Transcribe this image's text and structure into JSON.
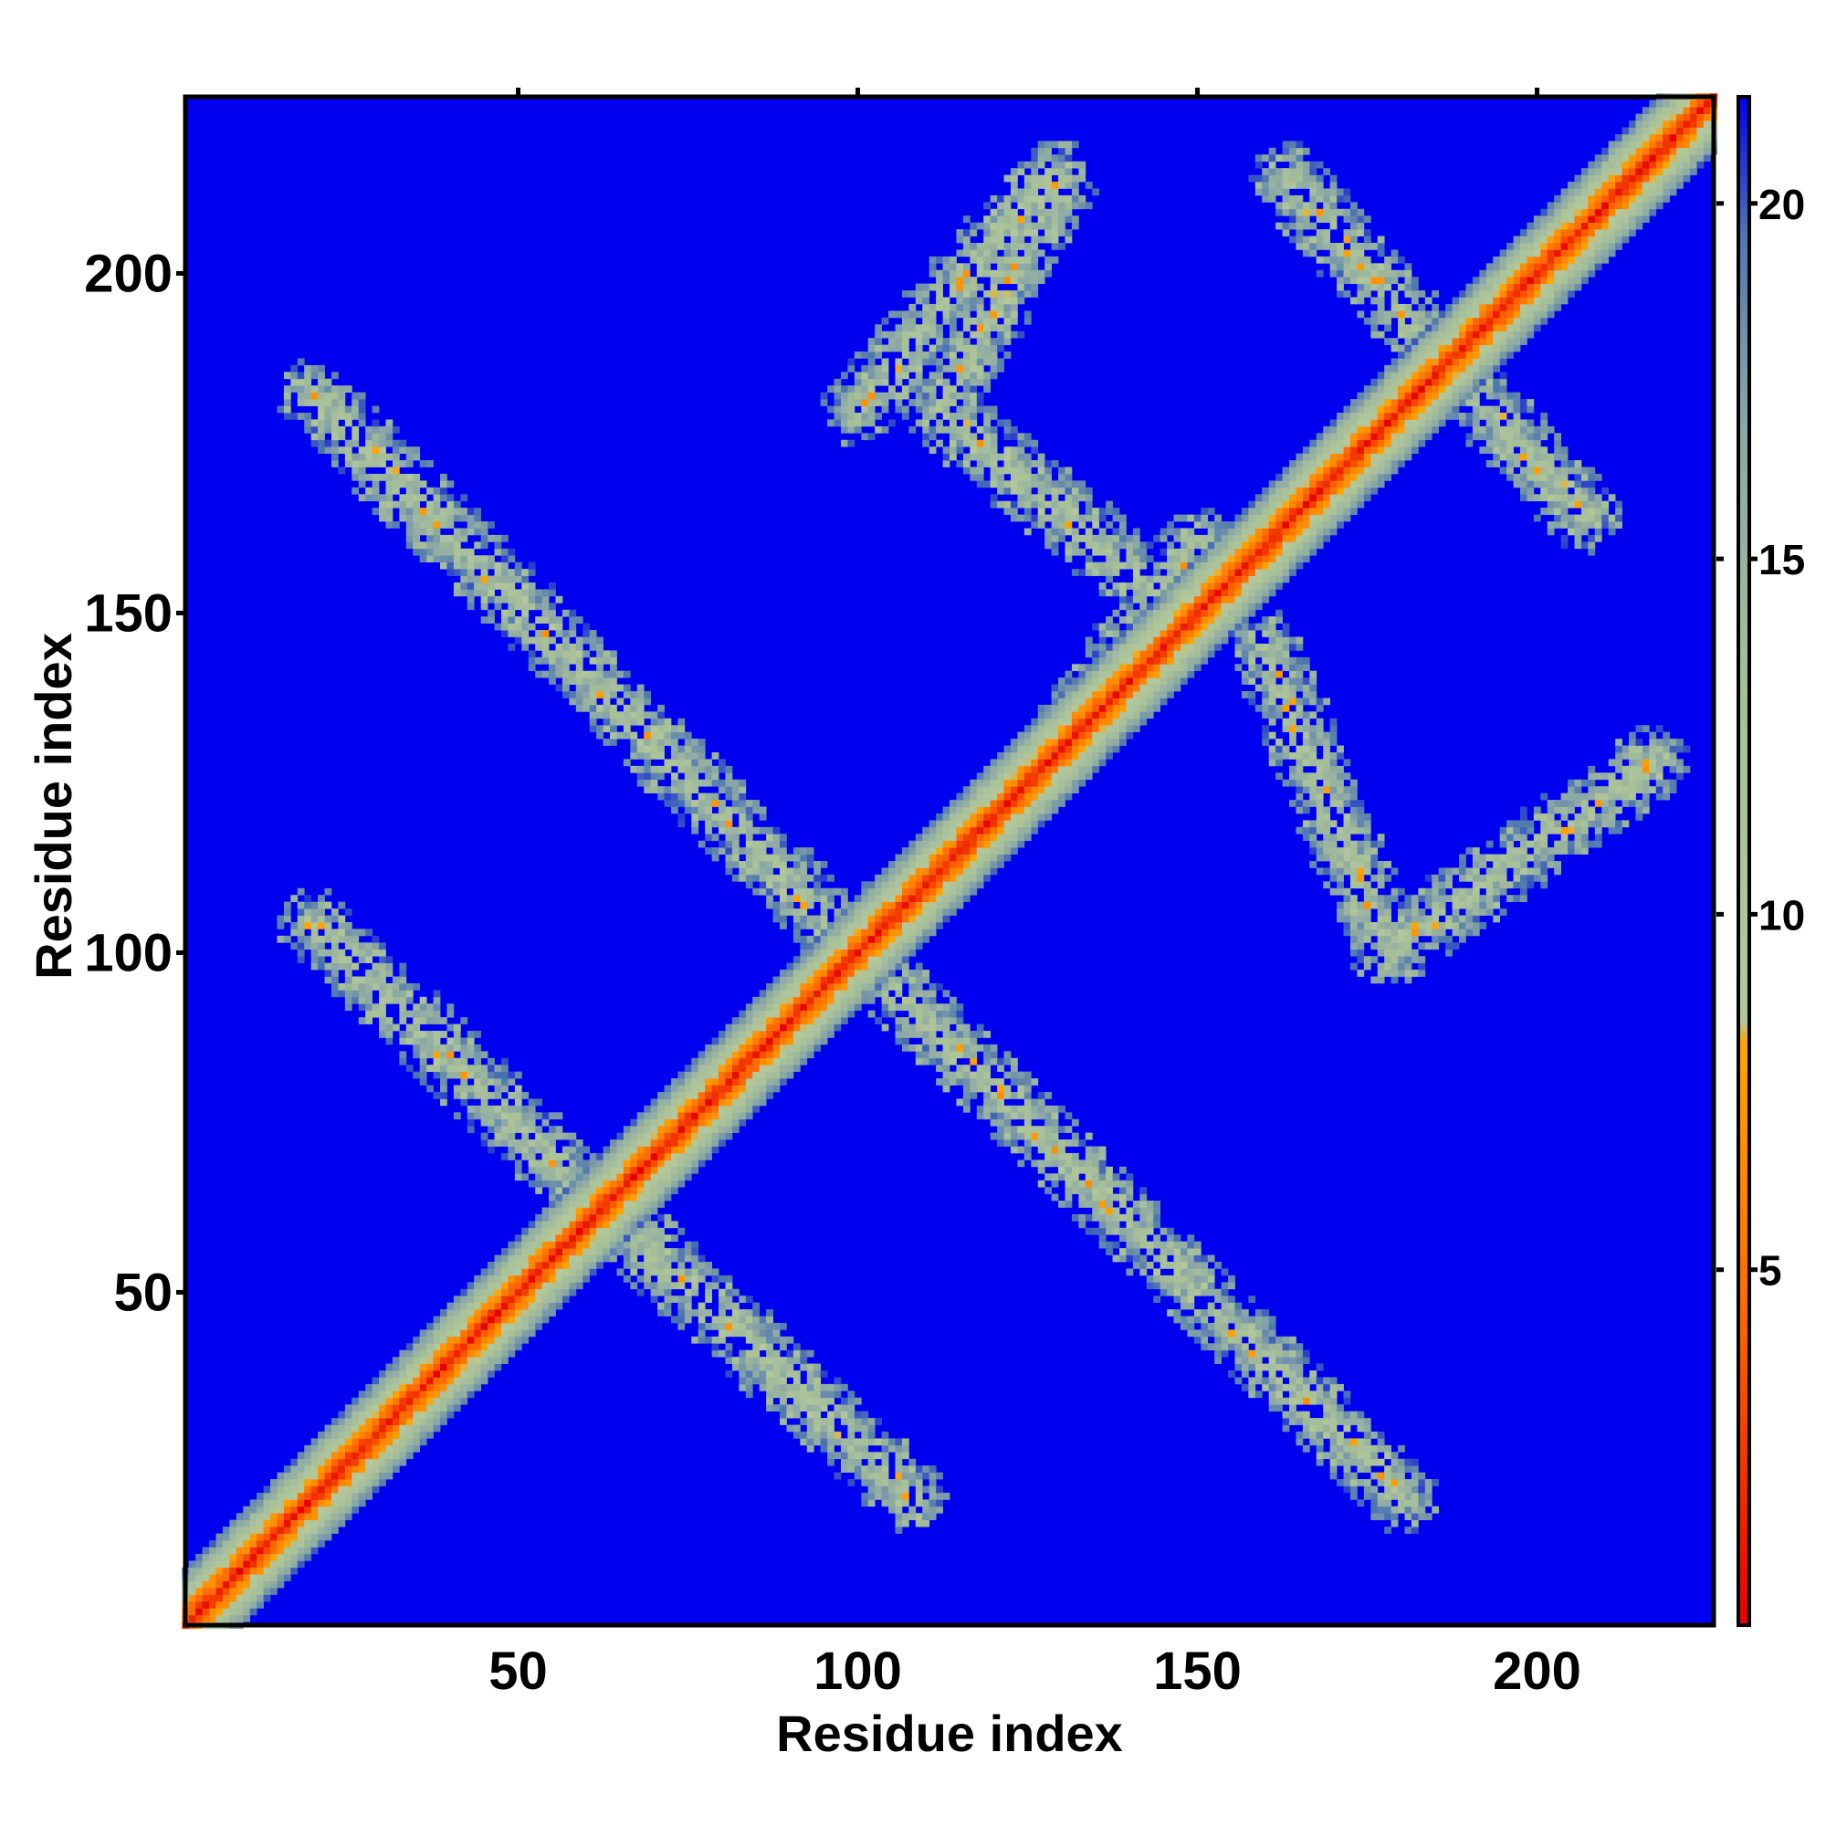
{
  "chart_data": {
    "type": "heatmap",
    "title": "",
    "xlabel": "Residue index",
    "ylabel": "Residue index",
    "xlim": [
      1,
      226
    ],
    "ylim": [
      1,
      226
    ],
    "x_ticks": [
      50,
      100,
      150,
      200
    ],
    "y_ticks": [
      50,
      100,
      150,
      200
    ],
    "colorbar": {
      "ticks": [
        5,
        10,
        15,
        20
      ],
      "range": [
        0,
        21.5
      ],
      "stops": [
        {
          "value": 0,
          "color": "#e60000"
        },
        {
          "value": 4.5,
          "color": "#ff6a00"
        },
        {
          "value": 8.2,
          "color": "#ffa500"
        },
        {
          "value": 8.5,
          "color": "#b4c89a"
        },
        {
          "value": 13,
          "color": "#a7c09a"
        },
        {
          "value": 17,
          "color": "#8aa6a6"
        },
        {
          "value": 19.5,
          "color": "#4f78b0"
        },
        {
          "value": 21.5,
          "color": "#0000ee"
        }
      ]
    },
    "colors": {
      "background": "#0000f0",
      "contact_high": "#e60000",
      "contact_mid": "#ffa500",
      "contact_low": "#a7c09a"
    },
    "diagonal": {
      "from": 1,
      "to": 226,
      "value": 0
    },
    "bands": [
      {
        "from": [
          20,
          182
        ],
        "to": [
          100,
          100
        ]
      },
      {
        "from": [
          100,
          100
        ],
        "to": [
          180,
          20
        ]
      },
      {
        "from": [
          20,
          104
        ],
        "to": [
          65,
          60
        ]
      },
      {
        "from": [
          65,
          60
        ],
        "to": [
          108,
          20
        ]
      },
      {
        "from": [
          100,
          102
        ],
        "to": [
          125,
          124
        ]
      },
      {
        "from": [
          125,
          124
        ],
        "to": [
          150,
          160
        ]
      },
      {
        "from": [
          112,
          180
        ],
        "to": [
          130,
          214
        ]
      },
      {
        "from": [
          112,
          180
        ],
        "to": [
          145,
          152
        ]
      },
      {
        "from": [
          163,
          214
        ],
        "to": [
          207,
          164
        ]
      },
      {
        "from": [
          160,
          145
        ],
        "to": [
          178,
          100
        ]
      },
      {
        "from": [
          178,
          100
        ],
        "to": [
          217,
          128
        ]
      },
      {
        "from": [
          100,
          180
        ],
        "to": [
          128,
          214
        ]
      }
    ]
  }
}
